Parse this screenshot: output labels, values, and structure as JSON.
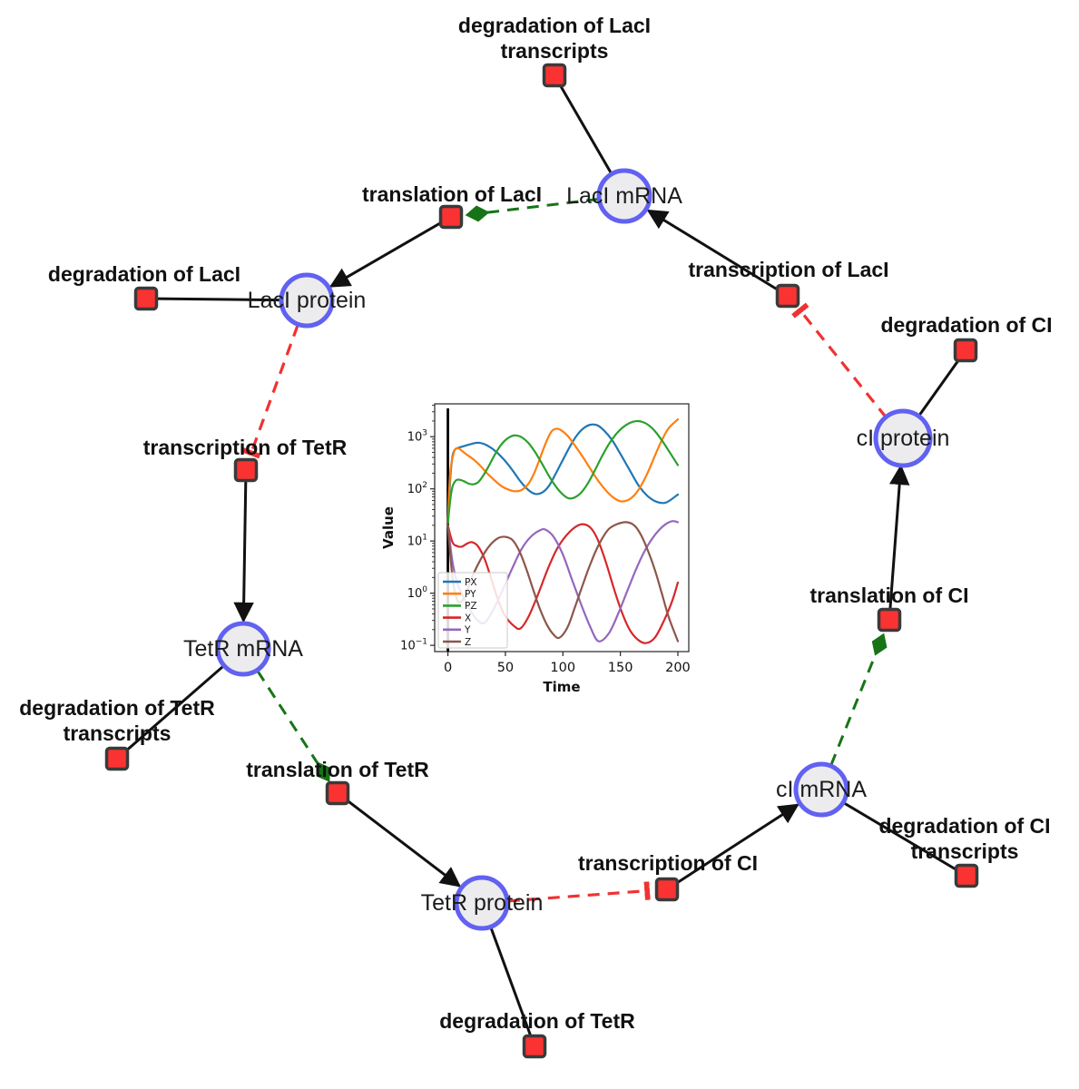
{
  "diagram": {
    "colors": {
      "species_fill": "#ececee",
      "species_border": "#6161f2",
      "reaction_fill": "#fa3232",
      "reaction_border": "#3a3a3a",
      "edge": "#111111",
      "activation_edge": "#167416",
      "inhibition_edge": "#f03232"
    },
    "species_nodes": [
      {
        "id": "laci-mrna",
        "label": "LacI mRNA"
      },
      {
        "id": "laci-protein",
        "label": "LacI protein"
      },
      {
        "id": "tetr-mrna",
        "label": "TetR mRNA"
      },
      {
        "id": "tetr-protein",
        "label": "TetR protein"
      },
      {
        "id": "ci-mrna",
        "label": "cI mRNA"
      },
      {
        "id": "ci-protein",
        "label": "cI protein"
      }
    ],
    "reactions": [
      {
        "id": "deg-laci-transcripts",
        "lines": [
          "degradation of LacI",
          "transcripts"
        ]
      },
      {
        "id": "translation-laci",
        "lines": [
          "translation of LacI"
        ]
      },
      {
        "id": "deg-laci",
        "lines": [
          "degradation of LacI"
        ]
      },
      {
        "id": "transcription-tetr",
        "lines": [
          "transcription of TetR"
        ]
      },
      {
        "id": "deg-tetr-transcripts",
        "lines": [
          "degradation of TetR",
          "transcripts"
        ]
      },
      {
        "id": "translation-tetr",
        "lines": [
          "translation of TetR"
        ]
      },
      {
        "id": "deg-tetr",
        "lines": [
          "degradation of TetR"
        ]
      },
      {
        "id": "transcription-ci",
        "lines": [
          "transcription of CI"
        ]
      },
      {
        "id": "deg-ci-transcripts",
        "lines": [
          "degradation of CI",
          "transcripts"
        ]
      },
      {
        "id": "translation-ci",
        "lines": [
          "translation of CI"
        ]
      },
      {
        "id": "deg-ci",
        "lines": [
          "degradation of CI"
        ]
      },
      {
        "id": "transcription-laci",
        "lines": [
          "transcription of LacI"
        ]
      }
    ]
  },
  "chart_data": {
    "type": "line",
    "title": "",
    "xlabel": "Time",
    "ylabel": "Value",
    "yscale": "log",
    "xlim": [
      -11.5,
      209.5
    ],
    "ylog_lim": [
      -1.12,
      3.63
    ],
    "xticks": [
      0,
      50,
      100,
      150,
      200
    ],
    "ytick_exponents": [
      -1,
      0,
      1,
      2,
      3
    ],
    "grid": false,
    "legend_position": "lower left",
    "vline": {
      "x": 0,
      "color": "#000000"
    },
    "series": [
      {
        "name": "PX",
        "color": "#1f77b4",
        "points": [
          [
            0,
            22
          ],
          [
            2,
            150
          ],
          [
            4,
            420
          ],
          [
            6,
            560
          ],
          [
            8,
            600
          ],
          [
            12,
            640
          ],
          [
            16,
            680
          ],
          [
            20,
            720
          ],
          [
            24,
            760
          ],
          [
            28,
            760
          ],
          [
            33,
            700
          ],
          [
            40,
            560
          ],
          [
            48,
            380
          ],
          [
            56,
            230
          ],
          [
            63,
            140
          ],
          [
            70,
            95
          ],
          [
            76,
            80
          ],
          [
            82,
            85
          ],
          [
            88,
            115
          ],
          [
            94,
            200
          ],
          [
            100,
            360
          ],
          [
            106,
            640
          ],
          [
            112,
            1050
          ],
          [
            118,
            1450
          ],
          [
            124,
            1700
          ],
          [
            130,
            1650
          ],
          [
            136,
            1300
          ],
          [
            143,
            850
          ],
          [
            150,
            470
          ],
          [
            158,
            230
          ],
          [
            166,
            115
          ],
          [
            174,
            72
          ],
          [
            182,
            56
          ],
          [
            190,
            55
          ],
          [
            200,
            78
          ]
        ]
      },
      {
        "name": "PY",
        "color": "#ff7f0e",
        "points": [
          [
            0,
            22
          ],
          [
            2,
            200
          ],
          [
            5,
            480
          ],
          [
            7,
            590
          ],
          [
            9,
            600
          ],
          [
            12,
            540
          ],
          [
            16,
            460
          ],
          [
            22,
            370
          ],
          [
            28,
            280
          ],
          [
            34,
            200
          ],
          [
            40,
            150
          ],
          [
            46,
            115
          ],
          [
            52,
            98
          ],
          [
            58,
            90
          ],
          [
            64,
            95
          ],
          [
            70,
            125
          ],
          [
            75,
            200
          ],
          [
            80,
            380
          ],
          [
            85,
            750
          ],
          [
            90,
            1250
          ],
          [
            94,
            1420
          ],
          [
            98,
            1350
          ],
          [
            104,
            1050
          ],
          [
            110,
            700
          ],
          [
            117,
            420
          ],
          [
            124,
            240
          ],
          [
            131,
            140
          ],
          [
            138,
            90
          ],
          [
            144,
            68
          ],
          [
            150,
            58
          ],
          [
            156,
            60
          ],
          [
            162,
            75
          ],
          [
            168,
            115
          ],
          [
            174,
            210
          ],
          [
            180,
            430
          ],
          [
            186,
            850
          ],
          [
            192,
            1450
          ],
          [
            200,
            2150
          ]
        ]
      },
      {
        "name": "PZ",
        "color": "#2ca02c",
        "points": [
          [
            0,
            22
          ],
          [
            2,
            60
          ],
          [
            4,
            110
          ],
          [
            7,
            145
          ],
          [
            10,
            150
          ],
          [
            14,
            140
          ],
          [
            18,
            126
          ],
          [
            22,
            122
          ],
          [
            26,
            132
          ],
          [
            30,
            170
          ],
          [
            35,
            260
          ],
          [
            40,
            420
          ],
          [
            45,
            640
          ],
          [
            50,
            860
          ],
          [
            55,
            1020
          ],
          [
            59,
            1060
          ],
          [
            64,
            980
          ],
          [
            70,
            760
          ],
          [
            76,
            500
          ],
          [
            82,
            300
          ],
          [
            88,
            175
          ],
          [
            94,
            110
          ],
          [
            100,
            78
          ],
          [
            105,
            66
          ],
          [
            110,
            68
          ],
          [
            116,
            85
          ],
          [
            122,
            130
          ],
          [
            128,
            230
          ],
          [
            134,
            420
          ],
          [
            140,
            720
          ],
          [
            146,
            1100
          ],
          [
            152,
            1500
          ],
          [
            158,
            1830
          ],
          [
            163,
            1980
          ],
          [
            168,
            1950
          ],
          [
            174,
            1700
          ],
          [
            180,
            1280
          ],
          [
            186,
            860
          ],
          [
            192,
            540
          ],
          [
            200,
            285
          ]
        ]
      },
      {
        "name": "X",
        "color": "#d62728",
        "points": [
          [
            0,
            20
          ],
          [
            4,
            9.5
          ],
          [
            8,
            8
          ],
          [
            12,
            7.8
          ],
          [
            17,
            9
          ],
          [
            21,
            9.5
          ],
          [
            26,
            8
          ],
          [
            32,
            4.5
          ],
          [
            38,
            1.8
          ],
          [
            44,
            0.7
          ],
          [
            50,
            0.36
          ],
          [
            57,
            0.24
          ],
          [
            63,
            0.21
          ],
          [
            70,
            0.35
          ],
          [
            78,
            0.9
          ],
          [
            86,
            2.6
          ],
          [
            94,
            6.5
          ],
          [
            102,
            12
          ],
          [
            110,
            18
          ],
          [
            117,
            21
          ],
          [
            124,
            18
          ],
          [
            130,
            11
          ],
          [
            137,
            4.2
          ],
          [
            144,
            1.3
          ],
          [
            151,
            0.45
          ],
          [
            158,
            0.2
          ],
          [
            165,
            0.13
          ],
          [
            172,
            0.11
          ],
          [
            180,
            0.14
          ],
          [
            188,
            0.3
          ],
          [
            195,
            0.7
          ],
          [
            200,
            1.6
          ]
        ]
      },
      {
        "name": "Y",
        "color": "#9467bd",
        "points": [
          [
            0,
            20
          ],
          [
            4,
            4
          ],
          [
            8,
            1.6
          ],
          [
            14,
            0.8
          ],
          [
            20,
            0.45
          ],
          [
            26,
            0.3
          ],
          [
            32,
            0.27
          ],
          [
            40,
            0.5
          ],
          [
            48,
            1.2
          ],
          [
            56,
            3
          ],
          [
            64,
            7
          ],
          [
            72,
            12
          ],
          [
            80,
            16
          ],
          [
            85,
            16.5
          ],
          [
            92,
            12
          ],
          [
            100,
            5.5
          ],
          [
            108,
            1.8
          ],
          [
            116,
            0.6
          ],
          [
            124,
            0.22
          ],
          [
            131,
            0.12
          ],
          [
            140,
            0.17
          ],
          [
            148,
            0.4
          ],
          [
            156,
            1.1
          ],
          [
            164,
            3
          ],
          [
            172,
            7
          ],
          [
            180,
            13
          ],
          [
            188,
            20
          ],
          [
            195,
            24
          ],
          [
            200,
            23
          ]
        ]
      },
      {
        "name": "Z",
        "color": "#8c564b",
        "points": [
          [
            0,
            20
          ],
          [
            4,
            2
          ],
          [
            8,
            0.75
          ],
          [
            12,
            0.7
          ],
          [
            16,
            1.0
          ],
          [
            20,
            1.8
          ],
          [
            26,
            3.5
          ],
          [
            32,
            6
          ],
          [
            38,
            9
          ],
          [
            44,
            11.5
          ],
          [
            50,
            12
          ],
          [
            56,
            10.5
          ],
          [
            62,
            6.5
          ],
          [
            68,
            3
          ],
          [
            74,
            1.2
          ],
          [
            80,
            0.5
          ],
          [
            86,
            0.25
          ],
          [
            92,
            0.16
          ],
          [
            97,
            0.14
          ],
          [
            104,
            0.22
          ],
          [
            110,
            0.5
          ],
          [
            116,
            1.2
          ],
          [
            122,
            2.8
          ],
          [
            128,
            6
          ],
          [
            134,
            11
          ],
          [
            140,
            17
          ],
          [
            147,
            21
          ],
          [
            155,
            23
          ],
          [
            162,
            20
          ],
          [
            168,
            13
          ],
          [
            174,
            6.5
          ],
          [
            180,
            2.8
          ],
          [
            186,
            1.0
          ],
          [
            192,
            0.35
          ],
          [
            200,
            0.12
          ]
        ]
      }
    ]
  }
}
